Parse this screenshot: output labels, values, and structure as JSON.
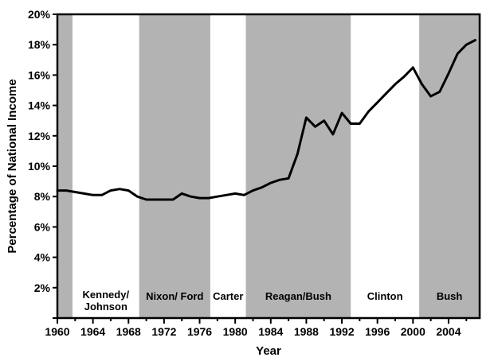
{
  "chart_data": {
    "type": "line",
    "xlabel": "Year",
    "ylabel": "Percentage of National Income",
    "xlim": [
      1960,
      2007.5
    ],
    "ylim": [
      0,
      20
    ],
    "x_ticks": [
      1960,
      1964,
      1968,
      1972,
      1976,
      1980,
      1984,
      1988,
      1992,
      1996,
      2000,
      2004
    ],
    "x_tick_labels": [
      "1960",
      "1964",
      "1968",
      "1972",
      "1976",
      "1980",
      "1984",
      "1988",
      "1992",
      "1996",
      "2000",
      "2004"
    ],
    "y_ticks": [
      2,
      4,
      6,
      8,
      10,
      12,
      14,
      16,
      18,
      20
    ],
    "y_tick_labels": [
      "2%",
      "4%",
      "6%",
      "8%",
      "10%",
      "12%",
      "14%",
      "16%",
      "18%",
      "20%"
    ],
    "grid": false,
    "shade_color": "#b3b3b3",
    "line_color": "#000000",
    "periods": [
      {
        "start": 1960,
        "end": 1961.7,
        "shaded": true,
        "label_lines": []
      },
      {
        "start": 1961.7,
        "end": 1969.2,
        "shaded": false,
        "label_lines": [
          "Kennedy/",
          "Johnson"
        ]
      },
      {
        "start": 1969.2,
        "end": 1977.2,
        "shaded": true,
        "label_lines": [
          "Nixon/ Ford"
        ]
      },
      {
        "start": 1977.2,
        "end": 1981.2,
        "shaded": false,
        "label_lines": [
          "Carter"
        ]
      },
      {
        "start": 1981.2,
        "end": 1993.0,
        "shaded": true,
        "label_lines": [
          "Reagan/Bush"
        ]
      },
      {
        "start": 1993.0,
        "end": 2000.7,
        "shaded": false,
        "label_lines": [
          "Clinton"
        ]
      },
      {
        "start": 2000.7,
        "end": 2007.5,
        "shaded": true,
        "label_lines": [
          "Bush"
        ]
      }
    ],
    "series": [
      {
        "x": [
          1960,
          1961,
          1962,
          1963,
          1964,
          1965,
          1966,
          1967,
          1968,
          1969,
          1970,
          1971,
          1972,
          1973,
          1974,
          1975,
          1976,
          1977,
          1978,
          1979,
          1980,
          1981,
          1982,
          1983,
          1984,
          1985,
          1986,
          1987,
          1988,
          1989,
          1990,
          1991,
          1992,
          1993,
          1994,
          1995,
          1996,
          1997,
          1998,
          1999,
          2000,
          2001,
          2002,
          2003,
          2004,
          2005,
          2006,
          2007
        ],
        "values": [
          8.4,
          8.4,
          8.3,
          8.2,
          8.1,
          8.1,
          8.4,
          8.5,
          8.4,
          8.0,
          7.8,
          7.8,
          7.8,
          7.8,
          8.2,
          8.0,
          7.9,
          7.9,
          8.0,
          8.1,
          8.2,
          8.1,
          8.4,
          8.6,
          8.9,
          9.1,
          9.2,
          10.8,
          13.2,
          12.6,
          13.0,
          12.1,
          13.5,
          12.8,
          12.8,
          13.6,
          14.2,
          14.8,
          15.4,
          15.9,
          16.5,
          15.4,
          14.6,
          14.9,
          16.1,
          17.4,
          18.0,
          18.3
        ]
      }
    ]
  }
}
